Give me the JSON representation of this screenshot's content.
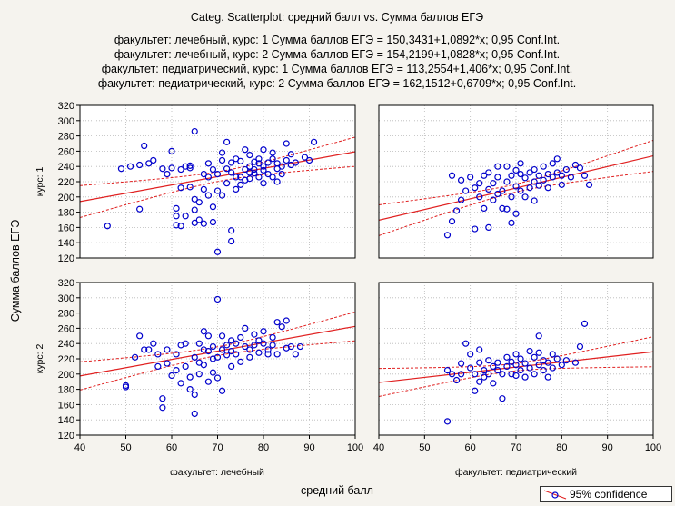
{
  "chart_data": {
    "type": "scatter",
    "title_lines": [
      "Categ. Scatterplot: средний балл vs. Сумма баллов ЕГЭ",
      "факультет: лечебный, курс: 1 Сумма баллов ЕГЭ = 150,3431+1,0892*x; 0,95 Conf.Int.",
      "факультет: лечебный, курс: 2 Сумма баллов ЕГЭ = 154,2199+1,0828*x; 0,95 Conf.Int.",
      "факультет: педиатрический, курс: 1 Сумма баллов ЕГЭ = 113,2554+1,406*x; 0,95 Conf.Int.",
      "факультет: педиатрический, курс: 2 Сумма баллов ЕГЭ = 162,1512+0,6709*x; 0,95 Conf.Int."
    ],
    "xlabel": "средний балл",
    "ylabel": "Сумма баллов ЕГЭ",
    "xlim": [
      40,
      100
    ],
    "ylim": [
      120,
      320
    ],
    "x_ticks": [
      40,
      50,
      60,
      70,
      80,
      90,
      100
    ],
    "y_ticks": [
      120,
      140,
      160,
      180,
      200,
      220,
      240,
      260,
      280,
      300,
      320
    ],
    "col_labels": [
      "факультет: лечебный",
      "факультет: педиатрический"
    ],
    "row_labels": [
      "курс: 1",
      "курс: 2"
    ],
    "legend": "95% confidence",
    "colors": {
      "points": "#0000cc",
      "fit": "#e02020",
      "plot_bg": "#ffffff",
      "grid": "#b8b8b8"
    },
    "panels": [
      {
        "faculty": "лечебный",
        "course": "курс: 1",
        "intercept": 150.3431,
        "slope": 1.0892,
        "points": [
          [
            46,
            162
          ],
          [
            49,
            237
          ],
          [
            51,
            240
          ],
          [
            53,
            242
          ],
          [
            53,
            184
          ],
          [
            54,
            267
          ],
          [
            55,
            244
          ],
          [
            56,
            248
          ],
          [
            58,
            237
          ],
          [
            59,
            230
          ],
          [
            60,
            238
          ],
          [
            60,
            260
          ],
          [
            61,
            185
          ],
          [
            61,
            175
          ],
          [
            61,
            163
          ],
          [
            62,
            236
          ],
          [
            62,
            212
          ],
          [
            62,
            162
          ],
          [
            63,
            240
          ],
          [
            63,
            175
          ],
          [
            64,
            241
          ],
          [
            64,
            238
          ],
          [
            64,
            213
          ],
          [
            65,
            286
          ],
          [
            65,
            197
          ],
          [
            65,
            183
          ],
          [
            65,
            166
          ],
          [
            66,
            193
          ],
          [
            66,
            170
          ],
          [
            67,
            230
          ],
          [
            67,
            210
          ],
          [
            67,
            165
          ],
          [
            68,
            244
          ],
          [
            68,
            226
          ],
          [
            68,
            202
          ],
          [
            69,
            236
          ],
          [
            69,
            187
          ],
          [
            69,
            167
          ],
          [
            70,
            230
          ],
          [
            70,
            208
          ],
          [
            70,
            128
          ],
          [
            71,
            248
          ],
          [
            71,
            202
          ],
          [
            71,
            258
          ],
          [
            72,
            218
          ],
          [
            72,
            237
          ],
          [
            72,
            272
          ],
          [
            73,
            245
          ],
          [
            73,
            232
          ],
          [
            73,
            156
          ],
          [
            73,
            142
          ],
          [
            74,
            250
          ],
          [
            74,
            226
          ],
          [
            74,
            210
          ],
          [
            75,
            226
          ],
          [
            75,
            247
          ],
          [
            75,
            216
          ],
          [
            76,
            236
          ],
          [
            76,
            222
          ],
          [
            76,
            262
          ],
          [
            77,
            240
          ],
          [
            77,
            232
          ],
          [
            77,
            224
          ],
          [
            77,
            255
          ],
          [
            78,
            246
          ],
          [
            78,
            236
          ],
          [
            78,
            231
          ],
          [
            79,
            244
          ],
          [
            79,
            226
          ],
          [
            79,
            250
          ],
          [
            80,
            235
          ],
          [
            80,
            218
          ],
          [
            80,
            262
          ],
          [
            80,
            240
          ],
          [
            81,
            245
          ],
          [
            81,
            230
          ],
          [
            82,
            250
          ],
          [
            82,
            226
          ],
          [
            82,
            258
          ],
          [
            83,
            244
          ],
          [
            83,
            237
          ],
          [
            83,
            220
          ],
          [
            84,
            240
          ],
          [
            84,
            230
          ],
          [
            85,
            248
          ],
          [
            85,
            270
          ],
          [
            86,
            242
          ],
          [
            86,
            256
          ],
          [
            87,
            245
          ],
          [
            89,
            252
          ],
          [
            90,
            248
          ],
          [
            91,
            272
          ]
        ]
      },
      {
        "faculty": "педиатрический",
        "course": "курс: 1",
        "intercept": 113.2554,
        "slope": 1.406,
        "points": [
          [
            55,
            150
          ],
          [
            56,
            168
          ],
          [
            56,
            228
          ],
          [
            57,
            182
          ],
          [
            58,
            222
          ],
          [
            58,
            196
          ],
          [
            59,
            208
          ],
          [
            60,
            226
          ],
          [
            61,
            158
          ],
          [
            61,
            212
          ],
          [
            62,
            218
          ],
          [
            62,
            200
          ],
          [
            63,
            228
          ],
          [
            63,
            185
          ],
          [
            64,
            232
          ],
          [
            64,
            210
          ],
          [
            64,
            160
          ],
          [
            65,
            218
          ],
          [
            65,
            196
          ],
          [
            66,
            240
          ],
          [
            66,
            226
          ],
          [
            66,
            204
          ],
          [
            67,
            208
          ],
          [
            67,
            185
          ],
          [
            68,
            240
          ],
          [
            68,
            220
          ],
          [
            68,
            184
          ],
          [
            69,
            228
          ],
          [
            69,
            200
          ],
          [
            69,
            166
          ],
          [
            70,
            235
          ],
          [
            70,
            214
          ],
          [
            70,
            178
          ],
          [
            71,
            244
          ],
          [
            71,
            230
          ],
          [
            71,
            208
          ],
          [
            72,
            225
          ],
          [
            72,
            200
          ],
          [
            73,
            232
          ],
          [
            73,
            212
          ],
          [
            74,
            236
          ],
          [
            74,
            220
          ],
          [
            74,
            195
          ],
          [
            75,
            228
          ],
          [
            75,
            215
          ],
          [
            76,
            240
          ],
          [
            76,
            222
          ],
          [
            77,
            230
          ],
          [
            77,
            212
          ],
          [
            78,
            244
          ],
          [
            78,
            226
          ],
          [
            79,
            250
          ],
          [
            79,
            232
          ],
          [
            80,
            228
          ],
          [
            80,
            216
          ],
          [
            81,
            236
          ],
          [
            82,
            226
          ],
          [
            83,
            242
          ],
          [
            84,
            238
          ],
          [
            85,
            228
          ],
          [
            86,
            216
          ]
        ]
      },
      {
        "faculty": "лечебный",
        "course": "курс: 2",
        "intercept": 154.2199,
        "slope": 1.0828,
        "points": [
          [
            50,
            185
          ],
          [
            50,
            183
          ],
          [
            52,
            222
          ],
          [
            53,
            250
          ],
          [
            54,
            232
          ],
          [
            55,
            232
          ],
          [
            56,
            240
          ],
          [
            57,
            226
          ],
          [
            57,
            210
          ],
          [
            58,
            168
          ],
          [
            58,
            156
          ],
          [
            59,
            232
          ],
          [
            59,
            214
          ],
          [
            60,
            198
          ],
          [
            61,
            226
          ],
          [
            61,
            205
          ],
          [
            62,
            188
          ],
          [
            62,
            238
          ],
          [
            63,
            240
          ],
          [
            63,
            210
          ],
          [
            64,
            196
          ],
          [
            64,
            180
          ],
          [
            65,
            222
          ],
          [
            65,
            148
          ],
          [
            65,
            173
          ],
          [
            66,
            240
          ],
          [
            66,
            215
          ],
          [
            66,
            200
          ],
          [
            67,
            256
          ],
          [
            67,
            232
          ],
          [
            67,
            212
          ],
          [
            68,
            250
          ],
          [
            68,
            230
          ],
          [
            68,
            190
          ],
          [
            69,
            236
          ],
          [
            69,
            220
          ],
          [
            69,
            202
          ],
          [
            70,
            298
          ],
          [
            70,
            222
          ],
          [
            70,
            195
          ],
          [
            71,
            250
          ],
          [
            71,
            232
          ],
          [
            71,
            178
          ],
          [
            72,
            238
          ],
          [
            72,
            225
          ],
          [
            73,
            244
          ],
          [
            73,
            230
          ],
          [
            73,
            210
          ],
          [
            74,
            240
          ],
          [
            74,
            226
          ],
          [
            75,
            248
          ],
          [
            75,
            216
          ],
          [
            76,
            236
          ],
          [
            76,
            260
          ],
          [
            77,
            232
          ],
          [
            77,
            222
          ],
          [
            78,
            252
          ],
          [
            78,
            238
          ],
          [
            79,
            228
          ],
          [
            79,
            244
          ],
          [
            80,
            240
          ],
          [
            80,
            256
          ],
          [
            81,
            232
          ],
          [
            81,
            226
          ],
          [
            82,
            248
          ],
          [
            82,
            238
          ],
          [
            83,
            268
          ],
          [
            83,
            226
          ],
          [
            84,
            262
          ],
          [
            85,
            270
          ],
          [
            85,
            234
          ],
          [
            86,
            236
          ],
          [
            87,
            226
          ],
          [
            88,
            236
          ]
        ]
      },
      {
        "faculty": "педиатрический",
        "course": "курс: 2",
        "intercept": 162.1512,
        "slope": 0.6709,
        "points": [
          [
            55,
            138
          ],
          [
            55,
            205
          ],
          [
            56,
            200
          ],
          [
            57,
            192
          ],
          [
            58,
            214
          ],
          [
            58,
            200
          ],
          [
            59,
            240
          ],
          [
            60,
            226
          ],
          [
            60,
            208
          ],
          [
            61,
            200
          ],
          [
            61,
            178
          ],
          [
            62,
            232
          ],
          [
            62,
            215
          ],
          [
            62,
            190
          ],
          [
            63,
            205
          ],
          [
            63,
            196
          ],
          [
            64,
            218
          ],
          [
            64,
            200
          ],
          [
            65,
            210
          ],
          [
            65,
            188
          ],
          [
            66,
            215
          ],
          [
            66,
            205
          ],
          [
            67,
            200
          ],
          [
            67,
            168
          ],
          [
            68,
            222
          ],
          [
            68,
            210
          ],
          [
            69,
            216
          ],
          [
            69,
            200
          ],
          [
            70,
            226
          ],
          [
            70,
            212
          ],
          [
            70,
            198
          ],
          [
            71,
            220
          ],
          [
            71,
            205
          ],
          [
            72,
            214
          ],
          [
            72,
            196
          ],
          [
            73,
            230
          ],
          [
            73,
            208
          ],
          [
            74,
            222
          ],
          [
            74,
            200
          ],
          [
            75,
            250
          ],
          [
            75,
            228
          ],
          [
            75,
            212
          ],
          [
            76,
            218
          ],
          [
            76,
            205
          ],
          [
            77,
            215
          ],
          [
            77,
            196
          ],
          [
            78,
            226
          ],
          [
            78,
            208
          ],
          [
            79,
            220
          ],
          [
            80,
            212
          ],
          [
            81,
            218
          ],
          [
            83,
            215
          ],
          [
            84,
            236
          ],
          [
            85,
            266
          ]
        ]
      }
    ]
  }
}
